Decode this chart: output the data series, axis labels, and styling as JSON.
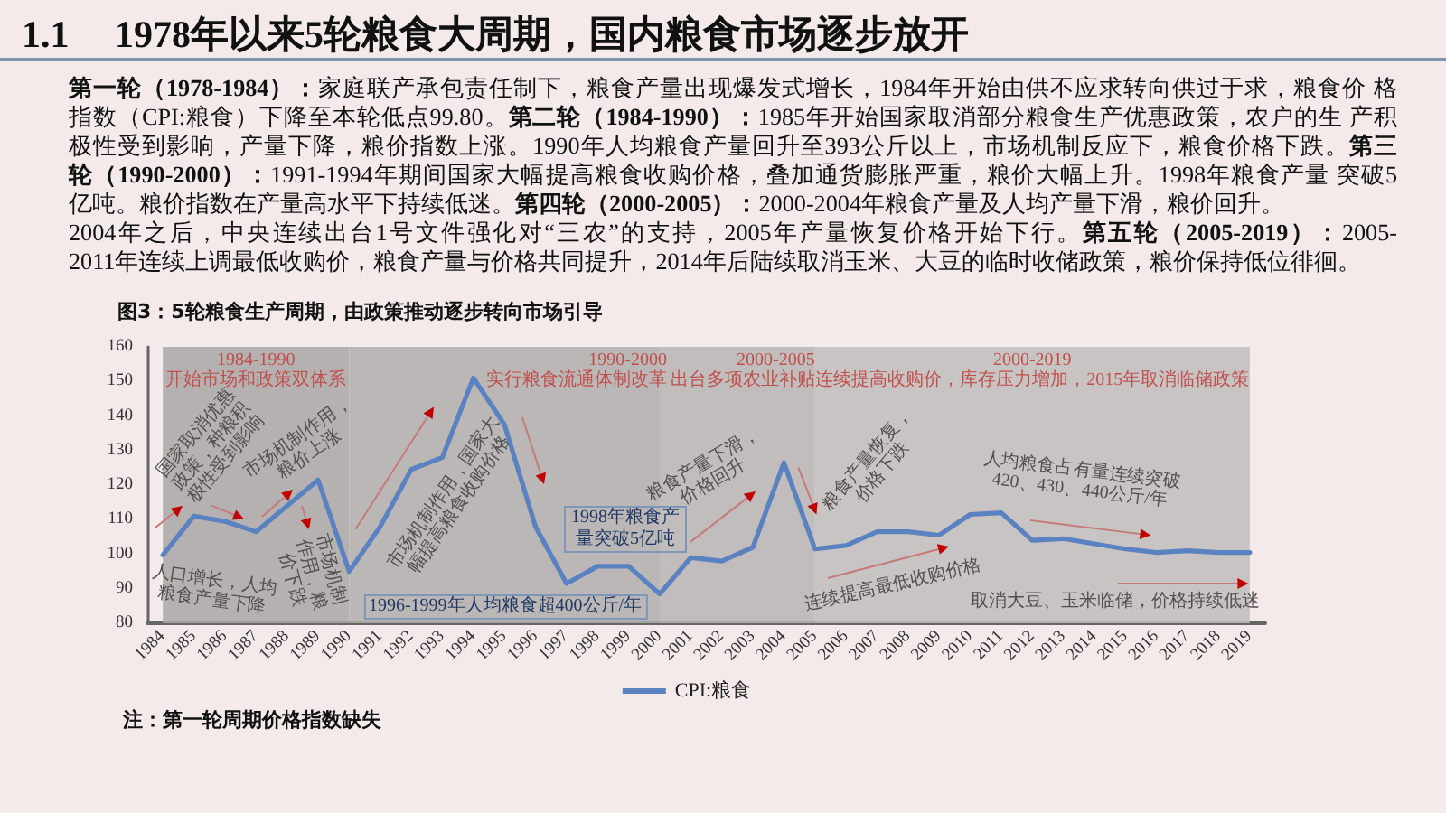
{
  "chart_data": {
    "type": "line",
    "title": "1.1 1978年以来5轮粮食大周期，国内粮食市场逐步放开",
    "subtitle": "图3：5轮粮食生产周期，由政策推动逐步转向市场引导",
    "categories": [
      "1984",
      "1985",
      "1986",
      "1987",
      "1988",
      "1989",
      "1990",
      "1991",
      "1992",
      "1993",
      "1994",
      "1995",
      "1996",
      "1997",
      "1998",
      "1999",
      "2000",
      "2001",
      "2002",
      "2003",
      "2004",
      "2005",
      "2006",
      "2007",
      "2008",
      "2009",
      "2010",
      "2011",
      "2012",
      "2013",
      "2014",
      "2015",
      "2016",
      "2017",
      "2018",
      "2019"
    ],
    "series": [
      {
        "name": "CPI:粮食",
        "color": "#5b82c0",
        "values": [
          99.8,
          111,
          109.5,
          106.5,
          114,
          121.5,
          95,
          108,
          124.5,
          128,
          151,
          137.5,
          108,
          91.5,
          96.5,
          96.5,
          88.5,
          99,
          98,
          102,
          126.5,
          101.5,
          102.5,
          106.5,
          106.5,
          105.5,
          111.5,
          112,
          104,
          104.5,
          103,
          101.5,
          100.5,
          101,
          100.5,
          100.5
        ]
      }
    ],
    "ylim": [
      80,
      160
    ],
    "yticks": [
      80,
      90,
      100,
      110,
      120,
      130,
      140,
      150,
      160
    ],
    "legend": "bottom",
    "bands": [
      {
        "axis": "x",
        "from": "1984",
        "to": "1990",
        "label": "1984-1990\n开始市场和政策双体系",
        "color": "#aaa7a7"
      },
      {
        "axis": "x",
        "from": "1990",
        "to": "2000",
        "label": "1990-2000\n实行粮食流通体制改革",
        "color": "#b1aeae"
      },
      {
        "axis": "x",
        "from": "2000",
        "to": "2005",
        "label": "2000-2005\n出台多项农业补贴",
        "color": "#b9b5b5"
      },
      {
        "axis": "x",
        "from": "2005",
        "to": "2019",
        "label": "2000-2019\n连续提高收购价，库存压力增加，2015年取消临储政策",
        "color": "#c1bdbd"
      }
    ],
    "annotations": [
      "第一轮（1978-1984）：",
      "家庭联产承包责任制下，粮食产量出现爆发式增长，1984年开始由供不应求转向供过于求，粮食价 格",
      "指数（CPI:粮食）下降至本轮低点99.80。",
      "第二轮（1984-1990）：",
      "1985年开始国家取消部分粮食生产优惠政策，农户的生 产积",
      "极性受到影响，产量下降，粮价指数上涨。1990年人均粮食产量回升至393公斤以上，市场机制反应下，粮食价格下跌。",
      "第三",
      "轮（1990-2000）：",
      "1991-1994年期间国家大幅提高粮食收购价格，叠加通货膨胀严重，粮价大幅上升。1998年粮食产量 突破5",
      "亿吨。粮价指数在产量高水平下持续低迷。",
      "第四轮（2000-2005）：",
      "2000-2004年粮食产量及人均产量下滑，粮价回升。",
      "2004年之后，中央连续出台1号文件强化对“三农”的支持，2005年产量恢复价格开始下行。",
      "第五轮（2005-2019）：",
      "2005-",
      "2011年连续上调最低收购价，粮食产量与价格共同提升，2014年后陆续取消玉米、大豆的临时收储政策，粮价保持低位徘徊。",
      "注：第一轮周期价格指数缺失",
      "国家取消优惠政策，种粮积极性受到影响",
      "人口增长，人均粮食产量下降",
      "市场机制作用，粮价上涨",
      "市场机制作用，粮价下跌",
      {
        "text": "市场机制作用，国家大幅提高粮食收购价格",
        "x": "1993",
        "y": 128
      },
      "粮食产量下滑，价格回升",
      "粮食产量恢复，价格下跌",
      "连续提高最低收购价格",
      "人均粮食占有量连续突破420、430、440公斤/年",
      "取消大豆、玉米临储，价格持续低迷",
      "1998年粮食产量突破5亿吨",
      "1996-1999年人均粮食超400公斤/年"
    ]
  }
}
